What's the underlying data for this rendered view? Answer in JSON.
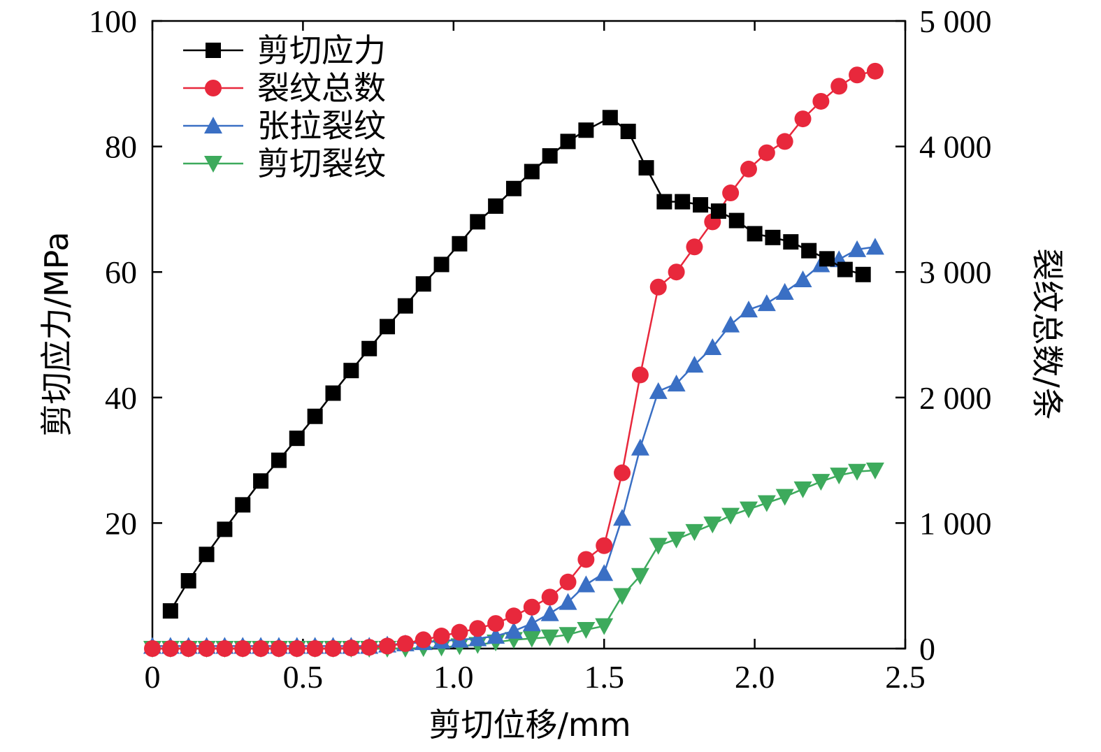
{
  "chart_data": {
    "type": "line",
    "xlabel": "剪切位移/mm",
    "ylabel_left": "剪切应力/MPa",
    "ylabel_right": "裂纹总数/条",
    "xlim": [
      0,
      2.5
    ],
    "ylim_left": [
      0,
      100
    ],
    "ylim_right": [
      0,
      5000
    ],
    "grid": false,
    "legend_position": "top-left",
    "x_ticks": [
      "0",
      "0.5",
      "1.0",
      "1.5",
      "2.0",
      "2.5"
    ],
    "y_left_ticks": [
      "20",
      "40",
      "60",
      "80",
      "100"
    ],
    "y_right_ticks": [
      "0",
      "1 000",
      "2 000",
      "3 000",
      "4 000",
      "5 000"
    ],
    "series": [
      {
        "name": "剪切应力",
        "axis": "left",
        "color": "#000000",
        "marker": "square",
        "x": [
          0.06,
          0.12,
          0.18,
          0.24,
          0.3,
          0.36,
          0.42,
          0.48,
          0.54,
          0.6,
          0.66,
          0.72,
          0.78,
          0.84,
          0.9,
          0.96,
          1.02,
          1.08,
          1.14,
          1.2,
          1.26,
          1.32,
          1.38,
          1.44,
          1.52,
          1.58,
          1.64,
          1.7,
          1.76,
          1.82,
          1.88,
          1.94,
          2.0,
          2.06,
          2.12,
          2.18,
          2.24,
          2.3,
          2.36
        ],
        "y": [
          6.0,
          10.8,
          15.0,
          19.0,
          22.9,
          26.7,
          30.0,
          33.5,
          37.0,
          40.7,
          44.3,
          47.8,
          51.3,
          54.6,
          58.1,
          61.2,
          64.5,
          68.0,
          70.5,
          73.3,
          76.0,
          78.5,
          80.8,
          82.6,
          84.6,
          82.4,
          76.6,
          71.2,
          71.2,
          70.7,
          69.7,
          68.2,
          66.1,
          65.5,
          64.8,
          63.4,
          62.1,
          60.4,
          59.6
        ]
      },
      {
        "name": "裂纹总数",
        "axis": "right",
        "color": "#e8283c",
        "marker": "circle",
        "x": [
          0.0,
          0.06,
          0.12,
          0.18,
          0.24,
          0.3,
          0.36,
          0.42,
          0.48,
          0.54,
          0.6,
          0.66,
          0.72,
          0.78,
          0.84,
          0.9,
          0.96,
          1.02,
          1.08,
          1.14,
          1.2,
          1.26,
          1.32,
          1.38,
          1.44,
          1.5,
          1.56,
          1.62,
          1.68,
          1.74,
          1.8,
          1.86,
          1.92,
          1.98,
          2.04,
          2.1,
          2.16,
          2.22,
          2.28,
          2.34,
          2.4
        ],
        "y": [
          0,
          0,
          0,
          0,
          0,
          0,
          0,
          0,
          0,
          0,
          0,
          5,
          10,
          20,
          40,
          70,
          100,
          130,
          160,
          200,
          260,
          330,
          410,
          530,
          710,
          820,
          1400,
          2180,
          2880,
          3000,
          3200,
          3400,
          3630,
          3820,
          3950,
          4040,
          4220,
          4360,
          4480,
          4570,
          4600
        ]
      },
      {
        "name": "张拉裂纹",
        "axis": "right",
        "color": "#3a6fc4",
        "marker": "triangle-up",
        "x": [
          0.0,
          0.06,
          0.12,
          0.18,
          0.24,
          0.3,
          0.36,
          0.42,
          0.48,
          0.54,
          0.6,
          0.66,
          0.72,
          0.78,
          0.84,
          0.9,
          0.96,
          1.02,
          1.08,
          1.14,
          1.2,
          1.26,
          1.32,
          1.38,
          1.44,
          1.5,
          1.56,
          1.62,
          1.68,
          1.74,
          1.8,
          1.86,
          1.92,
          1.98,
          2.04,
          2.1,
          2.16,
          2.22,
          2.28,
          2.34,
          2.4
        ],
        "y": [
          20,
          20,
          20,
          20,
          20,
          20,
          20,
          20,
          20,
          20,
          20,
          20,
          20,
          30,
          40,
          50,
          60,
          70,
          80,
          100,
          140,
          200,
          280,
          370,
          510,
          600,
          1040,
          1600,
          2050,
          2110,
          2260,
          2400,
          2580,
          2700,
          2750,
          2840,
          2940,
          3060,
          3100,
          3180,
          3200
        ]
      },
      {
        "name": "剪切裂纹",
        "axis": "right",
        "color": "#3daa5c",
        "marker": "triangle-down",
        "x": [
          0.0,
          0.06,
          0.12,
          0.18,
          0.24,
          0.3,
          0.36,
          0.42,
          0.48,
          0.54,
          0.6,
          0.66,
          0.72,
          0.78,
          0.84,
          0.9,
          0.96,
          1.02,
          1.08,
          1.14,
          1.2,
          1.26,
          1.32,
          1.38,
          1.44,
          1.5,
          1.56,
          1.62,
          1.68,
          1.74,
          1.8,
          1.86,
          1.92,
          1.98,
          2.04,
          2.1,
          2.16,
          2.22,
          2.28,
          2.34,
          2.4
        ],
        "y": [
          0,
          0,
          0,
          0,
          0,
          0,
          0,
          0,
          0,
          0,
          0,
          0,
          0,
          0,
          0,
          5,
          10,
          20,
          30,
          50,
          70,
          80,
          90,
          110,
          150,
          180,
          420,
          580,
          820,
          870,
          930,
          990,
          1060,
          1110,
          1160,
          1210,
          1270,
          1330,
          1380,
          1410,
          1420
        ]
      }
    ]
  }
}
